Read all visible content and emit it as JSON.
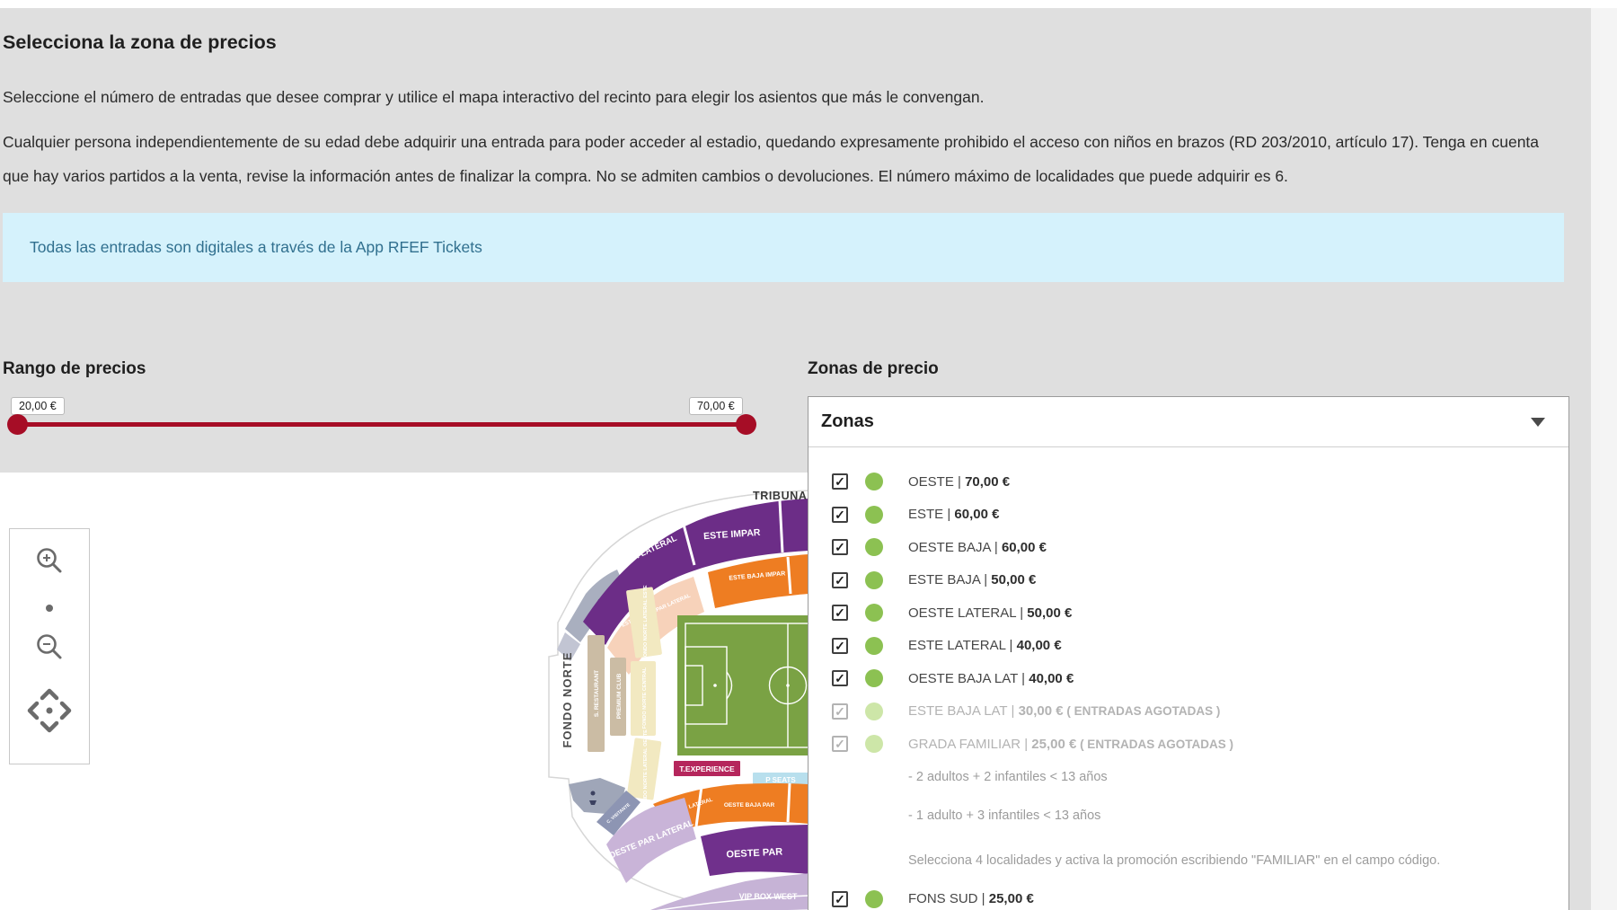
{
  "page": {
    "title": "Selecciona la zona de precios",
    "intro1": "Seleccione el número de entradas que desee comprar y utilice el mapa interactivo del recinto para elegir los asientos que más le convengan.",
    "intro2": "Cualquier persona independientemente de su edad debe adquirir una entrada para poder acceder al estadio, quedando expresamente prohibido el acceso con niños en brazos (RD 203/2010, artículo 17). Tenga en cuenta que hay varios partidos a la venta, revise la información antes de finalizar la compra. No se admiten cambios o devoluciones. El número máximo de localidades que puede adquirir es 6.",
    "notice": "Todas las entradas son digitales a través de la App RFEF Tickets"
  },
  "price_range": {
    "label": "Rango de precios",
    "min_label": "20,00 €",
    "max_label": "70,00 €"
  },
  "zones_panel": {
    "label": "Zonas de precio",
    "dropdown_label": "Zonas",
    "soldout_suffix": "( ENTRADAS AGOTADAS )",
    "items": [
      {
        "name": "OESTE",
        "price": "70,00 €",
        "sold_out": false
      },
      {
        "name": "ESTE",
        "price": "60,00 €",
        "sold_out": false
      },
      {
        "name": "OESTE BAJA",
        "price": "60,00 €",
        "sold_out": false
      },
      {
        "name": "ESTE BAJA",
        "price": "50,00 €",
        "sold_out": false
      },
      {
        "name": "OESTE LATERAL",
        "price": "50,00 €",
        "sold_out": false
      },
      {
        "name": "ESTE LATERAL",
        "price": "40,00 €",
        "sold_out": false
      },
      {
        "name": "OESTE BAJA LAT",
        "price": "40,00 €",
        "sold_out": false
      },
      {
        "name": "ESTE BAJA LAT",
        "price": "30,00 €",
        "sold_out": true
      },
      {
        "name": "GRADA FAMILIAR",
        "price": "25,00 €",
        "sold_out": true,
        "notes": [
          "- 2 adultos + 2 infantiles < 13 años",
          "- 1 adulto + 3 infantiles < 13 años",
          "Selecciona 4 localidades y activa la promoción escribiendo \"FAMILIAR\" en el campo código."
        ]
      },
      {
        "name": "FONS SUD",
        "price": "25,00 €",
        "sold_out": false
      }
    ]
  },
  "map": {
    "labels": {
      "tribuna_este": "TRIBUNA ESTE",
      "fondo_norte": "FONDO NORTE",
      "este_impar_lateral": "ESTE IMPAR LATERAL",
      "este_impar": "ESTE IMPAR",
      "este_baja_impar_lateral": "ESTE BAJA IMPAR LATERAL",
      "este_baja_impar": "ESTE BAJA IMPAR",
      "fondo_norte_lateral_este": "FONDO NORTE LATERAL ESTE",
      "fondo_norte_central": "FONDO NORTE CENTRAL",
      "fondo_norte_lateral_oeste": "FONDO NORTE LATERAL OESTE",
      "s_restaurant": "S. RESTAURANT",
      "premium_club": "PREMIUM CLUB",
      "t_experience": "T.EXPERIENCE",
      "p_seats": "P SEATS",
      "oeste_baja_par_lateral": "OESTE BAJA PAR LATERAL",
      "oeste_baja_par": "OESTE BAJA PAR",
      "oeste_par_lateral": "OESTE PAR LATERAL",
      "oeste_par": "OESTE PAR",
      "vip_box_west": "VIP BOX WEST",
      "c_visitante": "C. VISITANTE"
    },
    "colors": {
      "purple": "#6C2D87",
      "dark_purple": "#70308C",
      "orange": "#EE7D22",
      "peach": "#F7D2BA",
      "cream": "#F2E9C1",
      "tan": "#CBBCA4",
      "pitch_green": "#7AA244",
      "magenta": "#B5265C",
      "sky": "#B8DFED",
      "lavender": "#C9B4D8",
      "lavender_light": "#C6B3D6",
      "gray_blue": "#A9AFBF",
      "gray_blue_dark": "#9FA6B8",
      "steel": "#8D95B3",
      "steel_light": "#C2C5D3"
    },
    "accent_red": "#A60D26",
    "info_bg": "#D5F2FC",
    "info_text": "#31708F",
    "zone_available": "#8CC152",
    "zone_soldout": "#CDE6A8"
  }
}
